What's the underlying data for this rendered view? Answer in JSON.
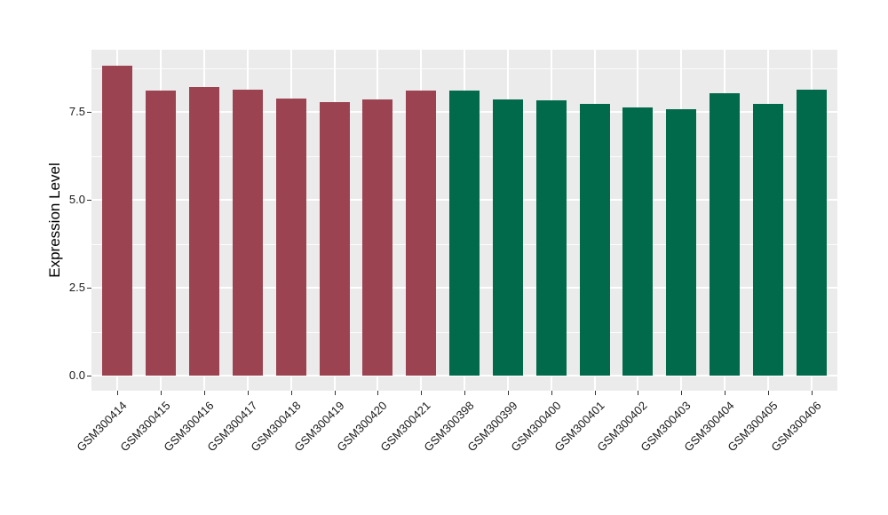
{
  "chart_data": {
    "type": "bar",
    "title": "",
    "xlabel": "",
    "ylabel": "Expression Level",
    "ylim": [
      0,
      9.3
    ],
    "yticks": [
      0,
      2.5,
      5.0,
      7.5
    ],
    "ytick_labels": [
      "0.0",
      "2.5",
      "5.0",
      "7.5"
    ],
    "minor_yticks": [
      1.25,
      3.75,
      6.25,
      8.75
    ],
    "grid": "white major and minor gridlines on gray panel, ggplot style",
    "legend": "none",
    "bar_groups": [
      {
        "name": "group-red",
        "color": "#9B4351",
        "samples": [
          {
            "label": "GSM300414",
            "value": 8.81
          },
          {
            "label": "GSM300415",
            "value": 8.11
          },
          {
            "label": "GSM300416",
            "value": 8.2
          },
          {
            "label": "GSM300417",
            "value": 8.14
          },
          {
            "label": "GSM300418",
            "value": 7.88
          },
          {
            "label": "GSM300419",
            "value": 7.77
          },
          {
            "label": "GSM300420",
            "value": 7.86
          },
          {
            "label": "GSM300421",
            "value": 8.1
          }
        ]
      },
      {
        "name": "group-green",
        "color": "#006A4B",
        "samples": [
          {
            "label": "GSM300398",
            "value": 8.1
          },
          {
            "label": "GSM300399",
            "value": 7.86
          },
          {
            "label": "GSM300400",
            "value": 7.84
          },
          {
            "label": "GSM300401",
            "value": 7.72
          },
          {
            "label": "GSM300402",
            "value": 7.62
          },
          {
            "label": "GSM300403",
            "value": 7.58
          },
          {
            "label": "GSM300404",
            "value": 8.03
          },
          {
            "label": "GSM300405",
            "value": 7.72
          },
          {
            "label": "GSM300406",
            "value": 8.14
          }
        ]
      }
    ],
    "colors": {
      "panel_background": "#EBEBEB",
      "gridline": "#FFFFFF",
      "axis_text": "#1A1A1A",
      "tick_mark": "#333333",
      "figure_background": "#FFFFFF"
    }
  }
}
